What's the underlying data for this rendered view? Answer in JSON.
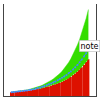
{
  "chart_data": {
    "type": "bar",
    "categories": [
      null,
      null,
      null,
      null,
      null,
      null,
      null,
      null,
      null,
      null,
      null,
      null,
      null,
      null,
      null,
      null,
      null,
      null,
      null,
      null,
      null,
      null,
      null,
      null,
      null,
      null,
      null,
      null,
      null,
      null,
      null,
      null,
      null,
      null,
      null,
      null
    ],
    "series": [
      {
        "type": "bar",
        "color": "#dd1100",
        "values": [
          0.8,
          0.85,
          0.9,
          0.92,
          0.95,
          1.0,
          1.05,
          1.1,
          1.18,
          1.25,
          1.32,
          1.4,
          1.5,
          1.6,
          1.72,
          1.85,
          1.98,
          2.1,
          2.25,
          2.4,
          2.55,
          2.72,
          2.9,
          3.1,
          3.35,
          3.6,
          3.88,
          4.2,
          4.55,
          4.9,
          5.3,
          5.75,
          6.25,
          6.8,
          7.4,
          8.0
        ]
      },
      {
        "type": "area",
        "color": "#33dd00",
        "values": [
          0.85,
          0.9,
          0.97,
          1.02,
          1.08,
          1.15,
          1.23,
          1.32,
          1.43,
          1.55,
          1.68,
          1.82,
          1.98,
          2.15,
          2.35,
          2.58,
          2.82,
          3.08,
          3.38,
          3.7,
          4.05,
          4.45,
          4.88,
          5.38,
          5.95,
          6.58,
          7.28,
          8.08,
          8.98,
          9.98,
          11.1,
          12.3,
          13.7,
          15.2,
          16.9,
          18.8
        ]
      },
      {
        "type": "line",
        "color": "#4488ff",
        "line_style": "dotted",
        "marker": "circle",
        "values": [
          0.82,
          0.87,
          0.92,
          0.96,
          1.01,
          1.07,
          1.13,
          1.2,
          1.29,
          1.38,
          1.48,
          1.59,
          1.72,
          1.86,
          2.01,
          2.18,
          2.36,
          2.54,
          2.74,
          2.95,
          3.17,
          3.41,
          3.67,
          3.95,
          4.26,
          4.59,
          4.95,
          5.35,
          5.78,
          6.25,
          6.76,
          7.32,
          7.93,
          8.6,
          9.32,
          10.1
        ]
      }
    ],
    "annotation": "note",
    "ylim": [
      0,
      20
    ],
    "tick_labels": false,
    "grid": false
  }
}
